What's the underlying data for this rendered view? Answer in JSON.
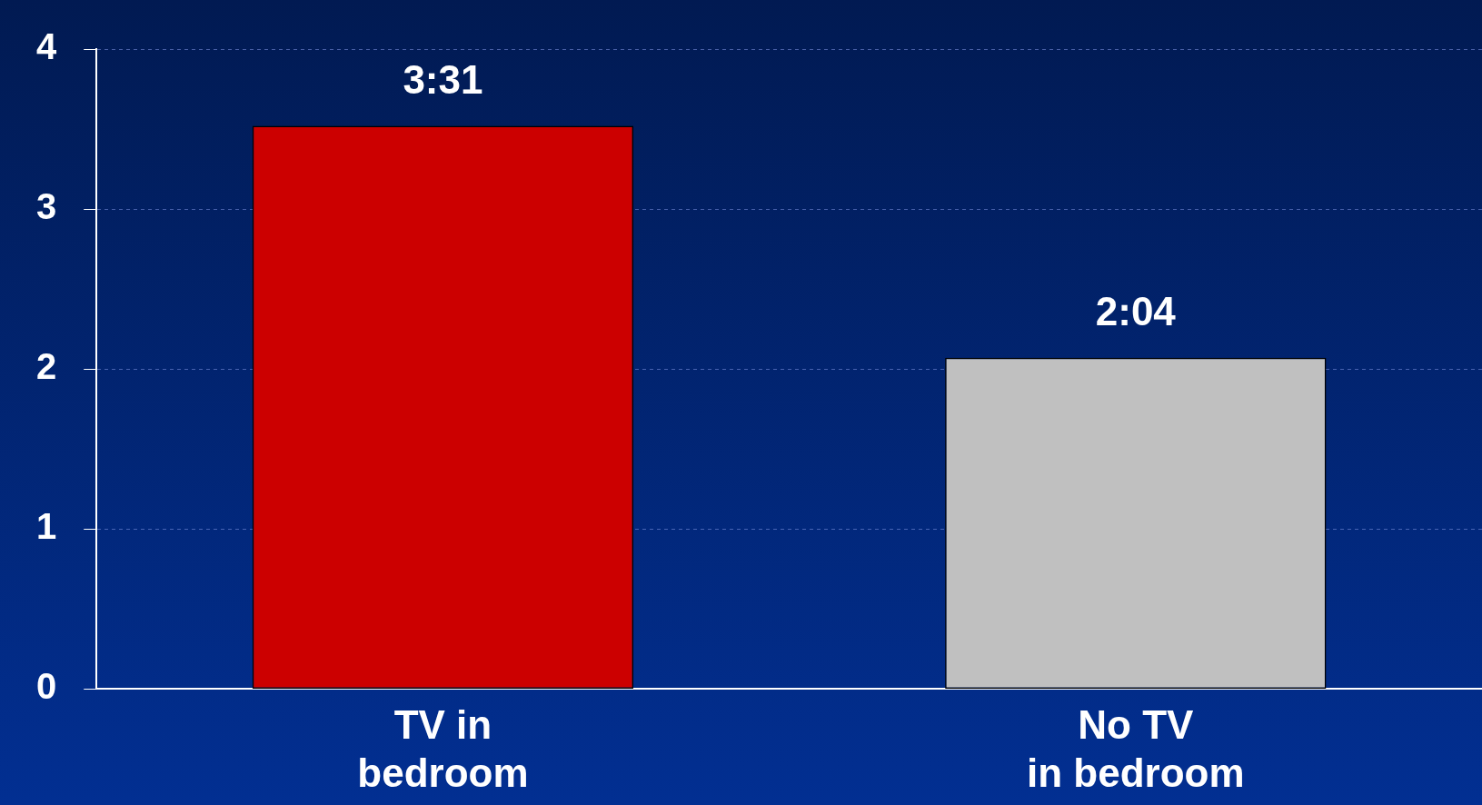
{
  "chart_data": {
    "type": "bar",
    "categories": [
      "TV in\nbedroom",
      "No TV\nin bedroom"
    ],
    "values": [
      3.52,
      2.07
    ],
    "colors": [
      "#cc0000",
      "#c0c0c0"
    ],
    "value_labels": [
      "3:31",
      "2:04"
    ],
    "ylim": [
      0,
      4
    ],
    "yticks": [
      0,
      1,
      2,
      3,
      4
    ],
    "grid": "y",
    "legend": false
  }
}
